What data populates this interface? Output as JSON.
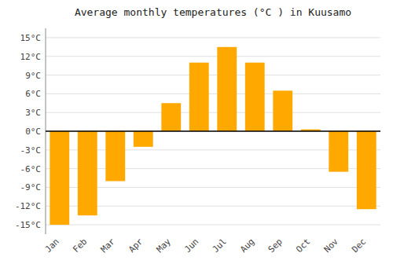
{
  "chart_data": {
    "type": "bar",
    "title": "Average monthly temperatures (°C ) in Kuusamo",
    "categories": [
      "Jan",
      "Feb",
      "Mar",
      "Apr",
      "May",
      "Jun",
      "Jul",
      "Aug",
      "Sep",
      "Oct",
      "Nov",
      "Dec"
    ],
    "values": [
      -15.0,
      -13.5,
      -8.0,
      -2.5,
      4.5,
      11.0,
      13.5,
      11.0,
      6.5,
      0.3,
      -6.5,
      -12.5
    ],
    "color": "#FFA800",
    "ylim": [
      -16.5,
      16.5
    ],
    "yticks": [
      {
        "value": -15,
        "label": "-15°C"
      },
      {
        "value": -12,
        "label": "-12°C"
      },
      {
        "value": -9,
        "label": "-9°C"
      },
      {
        "value": -6,
        "label": "-6°C"
      },
      {
        "value": -3,
        "label": "-3°C"
      },
      {
        "value": 0,
        "label": "0°C"
      },
      {
        "value": 3,
        "label": "3°C"
      },
      {
        "value": 6,
        "label": "6°C"
      },
      {
        "value": 9,
        "label": "9°C"
      },
      {
        "value": 12,
        "label": "12°C"
      },
      {
        "value": 15,
        "label": "15°C"
      }
    ],
    "grid": true
  }
}
